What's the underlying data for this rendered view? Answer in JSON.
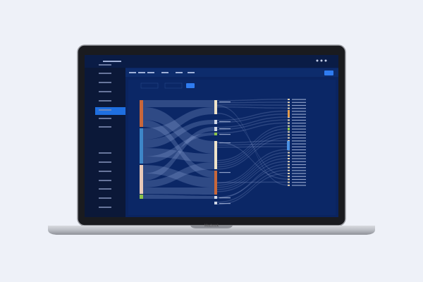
{
  "screen": {
    "device_label": "Macbook"
  }
}
